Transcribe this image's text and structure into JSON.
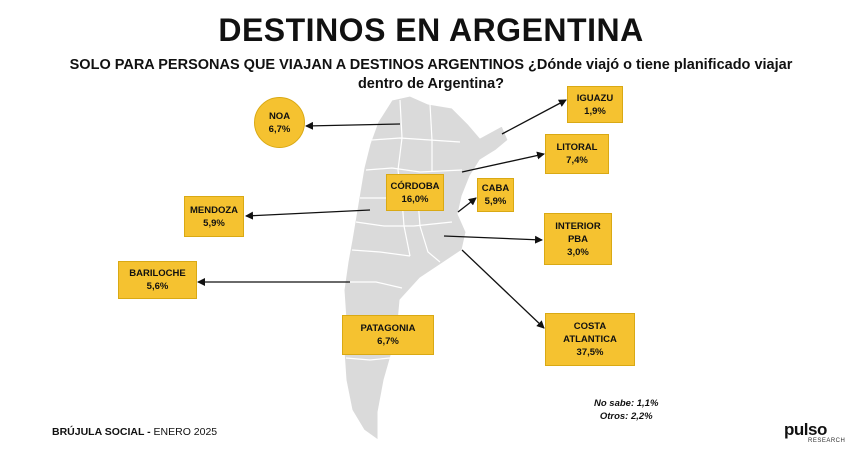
{
  "header": {
    "title": "DESTINOS EN ARGENTINA",
    "subtitle": "SOLO PARA PERSONAS QUE VIAJAN A DESTINOS ARGENTINOS ¿Dónde viajó o tiene planificado viajar dentro de Argentina?"
  },
  "regions": [
    {
      "name": "NOA",
      "value": "6,7%"
    },
    {
      "name": "IGUAZU",
      "value": "1,9%"
    },
    {
      "name": "LITORAL",
      "value": "7,4%"
    },
    {
      "name": "CÓRDOBA",
      "value": "16,0%"
    },
    {
      "name": "CABA",
      "value": "5,9%"
    },
    {
      "name": "MENDOZA",
      "value": "5,9%"
    },
    {
      "name": "INTERIOR PBA",
      "value": "3,0%"
    },
    {
      "name": "BARILOCHE",
      "value": "5,6%"
    },
    {
      "name": "PATAGONIA",
      "value": "6,7%"
    },
    {
      "name": "COSTA ATLANTICA",
      "value": "37,5%"
    }
  ],
  "notes": {
    "no_sabe": "No sabe: 1,1%",
    "otros": "Otros: 2,2%"
  },
  "footer": {
    "source_bold": "BRÚJULA SOCIAL -",
    "source_date": "ENERO 2025"
  },
  "logo": {
    "text": "pulso",
    "sub": "RESEARCH"
  },
  "colors": {
    "box": "#F5C230",
    "map": "#DADADA",
    "arrow": "#111111"
  }
}
